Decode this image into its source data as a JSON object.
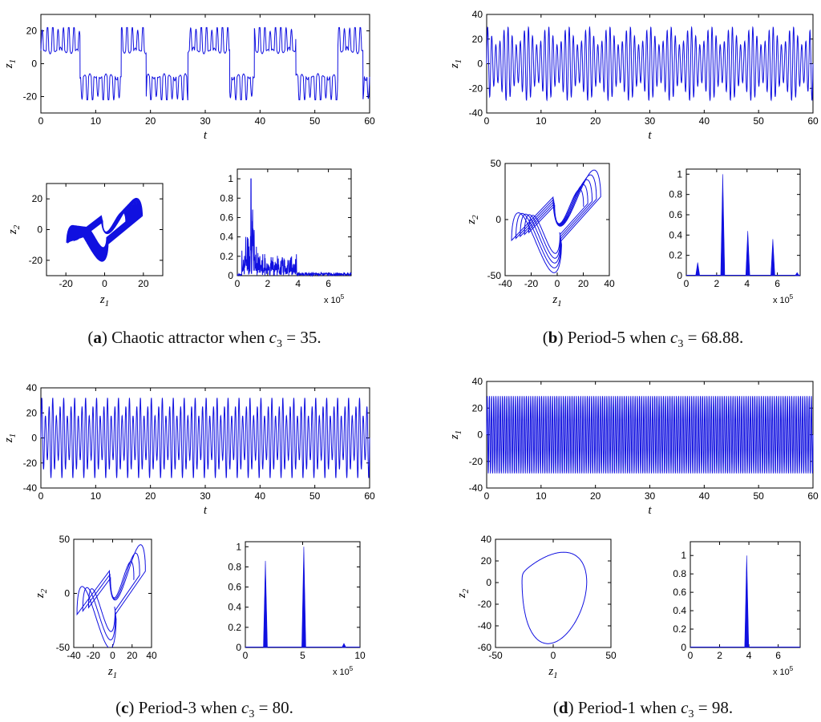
{
  "colors": {
    "series": "#1010e0",
    "axes": "#000000",
    "background": "#ffffff"
  },
  "panels": [
    {
      "caption": {
        "letter": "a",
        "text": "Chaotic attractor when",
        "param": "c",
        "param_sub": "3",
        "value": "35"
      },
      "chart_data": [
        {
          "type": "line",
          "role": "time-series",
          "xlabel": "t",
          "ylabel": "z",
          "ylabel_sub": "1",
          "xlim": [
            0,
            60
          ],
          "ylim": [
            -30,
            30
          ],
          "xticks": [
            "0",
            "10",
            "20",
            "30",
            "40",
            "50",
            "60"
          ],
          "yticks": [
            "-20",
            "0",
            "20"
          ],
          "signal": {
            "kind": "chaotic",
            "amplitude": 22,
            "cycles": 62
          }
        },
        {
          "type": "line",
          "role": "phase-portrait",
          "xlabel": "z",
          "xlabel_sub": "1",
          "ylabel": "z",
          "ylabel_sub": "2",
          "xlim": [
            -30,
            30
          ],
          "ylim": [
            -30,
            30
          ],
          "xticks": [
            "-20",
            "0",
            "20"
          ],
          "yticks": [
            "-20",
            "0",
            "20"
          ],
          "attractor": {
            "kind": "chaotic",
            "loops": 26,
            "scale": 0.9
          }
        },
        {
          "type": "line",
          "role": "spectrum",
          "xlim": [
            0,
            7.5
          ],
          "ylim": [
            0,
            1.1
          ],
          "xticks": [
            "0",
            "2",
            "4",
            "6"
          ],
          "yticks": [
            "0",
            "0.2",
            "0.4",
            "0.6",
            "0.8",
            "1"
          ],
          "multiplier": "x 10",
          "multiplier_exp": "5",
          "peaks": [],
          "broadband": {
            "from": 0.3,
            "to": 3.9,
            "peak_at": 0.9,
            "seed": 7
          }
        }
      ]
    },
    {
      "caption": {
        "letter": "b",
        "text": "Period-5 when",
        "param": "c",
        "param_sub": "3",
        "value": "68.88"
      },
      "chart_data": [
        {
          "type": "line",
          "role": "time-series",
          "xlabel": "t",
          "ylabel": "z",
          "ylabel_sub": "1",
          "xlim": [
            0,
            60
          ],
          "ylim": [
            -40,
            40
          ],
          "xticks": [
            "0",
            "10",
            "20",
            "30",
            "40",
            "50",
            "60"
          ],
          "yticks": [
            "-40",
            "-20",
            "0",
            "20",
            "40"
          ],
          "signal": {
            "kind": "periodic",
            "amplitude": 30,
            "cycles": 80,
            "subloops": 5
          }
        },
        {
          "type": "line",
          "role": "phase-portrait",
          "xlabel": "z",
          "xlabel_sub": "1",
          "ylabel": "z",
          "ylabel_sub": "2",
          "xlim": [
            -40,
            40
          ],
          "ylim": [
            -50,
            50
          ],
          "xticks": [
            "-40",
            "-20",
            "0",
            "20",
            "40"
          ],
          "yticks": [
            "-50",
            "0",
            "50"
          ],
          "attractor": {
            "kind": "periodic",
            "loops": 5,
            "scale": 1.25
          }
        },
        {
          "type": "line",
          "role": "spectrum",
          "xlim": [
            0,
            7.5
          ],
          "ylim": [
            0,
            1.05
          ],
          "xticks": [
            "0",
            "2",
            "4",
            "6"
          ],
          "yticks": [
            "0",
            "0.2",
            "0.4",
            "0.6",
            "0.8",
            "1"
          ],
          "multiplier": "x 10",
          "multiplier_exp": "5",
          "peaks": [
            [
              0.75,
              0.13
            ],
            [
              2.4,
              1.0
            ],
            [
              4.05,
              0.44
            ],
            [
              5.7,
              0.36
            ],
            [
              7.3,
              0.03
            ]
          ]
        }
      ]
    },
    {
      "caption": {
        "letter": "c",
        "text": "Period-3 when",
        "param": "c",
        "param_sub": "3",
        "value": "80"
      },
      "chart_data": [
        {
          "type": "line",
          "role": "time-series",
          "xlabel": "t",
          "ylabel": "z",
          "ylabel_sub": "1",
          "xlim": [
            0,
            60
          ],
          "ylim": [
            -40,
            40
          ],
          "xticks": [
            "0",
            "10",
            "20",
            "30",
            "40",
            "50",
            "60"
          ],
          "yticks": [
            "-40",
            "-20",
            "0",
            "20",
            "40"
          ],
          "signal": {
            "kind": "periodic",
            "amplitude": 33,
            "cycles": 90,
            "subloops": 3
          }
        },
        {
          "type": "line",
          "role": "phase-portrait",
          "xlabel": "z",
          "xlabel_sub": "1",
          "ylabel": "z",
          "ylabel_sub": "2",
          "xlim": [
            -40,
            40
          ],
          "ylim": [
            -50,
            50
          ],
          "xticks": [
            "-40",
            "-20",
            "0",
            "20",
            "40"
          ],
          "yticks": [
            "-50",
            "0",
            "50"
          ],
          "attractor": {
            "kind": "periodic",
            "loops": 3,
            "scale": 1.35
          }
        },
        {
          "type": "line",
          "role": "spectrum",
          "xlim": [
            0,
            10
          ],
          "ylim": [
            0,
            1.05
          ],
          "xticks": [
            "0",
            "5",
            "10"
          ],
          "yticks": [
            "0",
            "0.2",
            "0.4",
            "0.6",
            "0.8",
            "1"
          ],
          "multiplier": "x 10",
          "multiplier_exp": "5",
          "peaks": [
            [
              1.75,
              0.86
            ],
            [
              5.1,
              1.0
            ],
            [
              8.6,
              0.04
            ]
          ]
        }
      ]
    },
    {
      "caption": {
        "letter": "d",
        "text": "Period-1 when",
        "param": "c",
        "param_sub": "3",
        "value": "98"
      },
      "chart_data": [
        {
          "type": "line",
          "role": "time-series",
          "xlabel": "t",
          "ylabel": "z",
          "ylabel_sub": "1",
          "xlim": [
            0,
            60
          ],
          "ylim": [
            -40,
            40
          ],
          "xticks": [
            "0",
            "10",
            "20",
            "30",
            "40",
            "50",
            "60"
          ],
          "yticks": [
            "-40",
            "-20",
            "0",
            "20",
            "40"
          ],
          "signal": {
            "kind": "periodic",
            "amplitude": 29,
            "cycles": 150,
            "subloops": 1
          }
        },
        {
          "type": "line",
          "role": "phase-portrait",
          "xlabel": "z",
          "xlabel_sub": "1",
          "ylabel": "z",
          "ylabel_sub": "2",
          "xlim": [
            -50,
            50
          ],
          "ylim": [
            -60,
            40
          ],
          "xticks": [
            "-50",
            "0",
            "50"
          ],
          "yticks": [
            "-60",
            "-40",
            "-20",
            "0",
            "20",
            "40"
          ],
          "attractor": {
            "kind": "limit-cycle",
            "loops": 1,
            "scale": 1.0
          }
        },
        {
          "type": "line",
          "role": "spectrum",
          "xlim": [
            0,
            7.5
          ],
          "ylim": [
            0,
            1.15
          ],
          "xticks": [
            "0",
            "2",
            "4",
            "6"
          ],
          "yticks": [
            "0",
            "0.2",
            "0.4",
            "0.6",
            "0.8",
            "1"
          ],
          "multiplier": "x 10",
          "multiplier_exp": "5",
          "peaks": [
            [
              3.85,
              1.0
            ]
          ]
        }
      ]
    }
  ]
}
